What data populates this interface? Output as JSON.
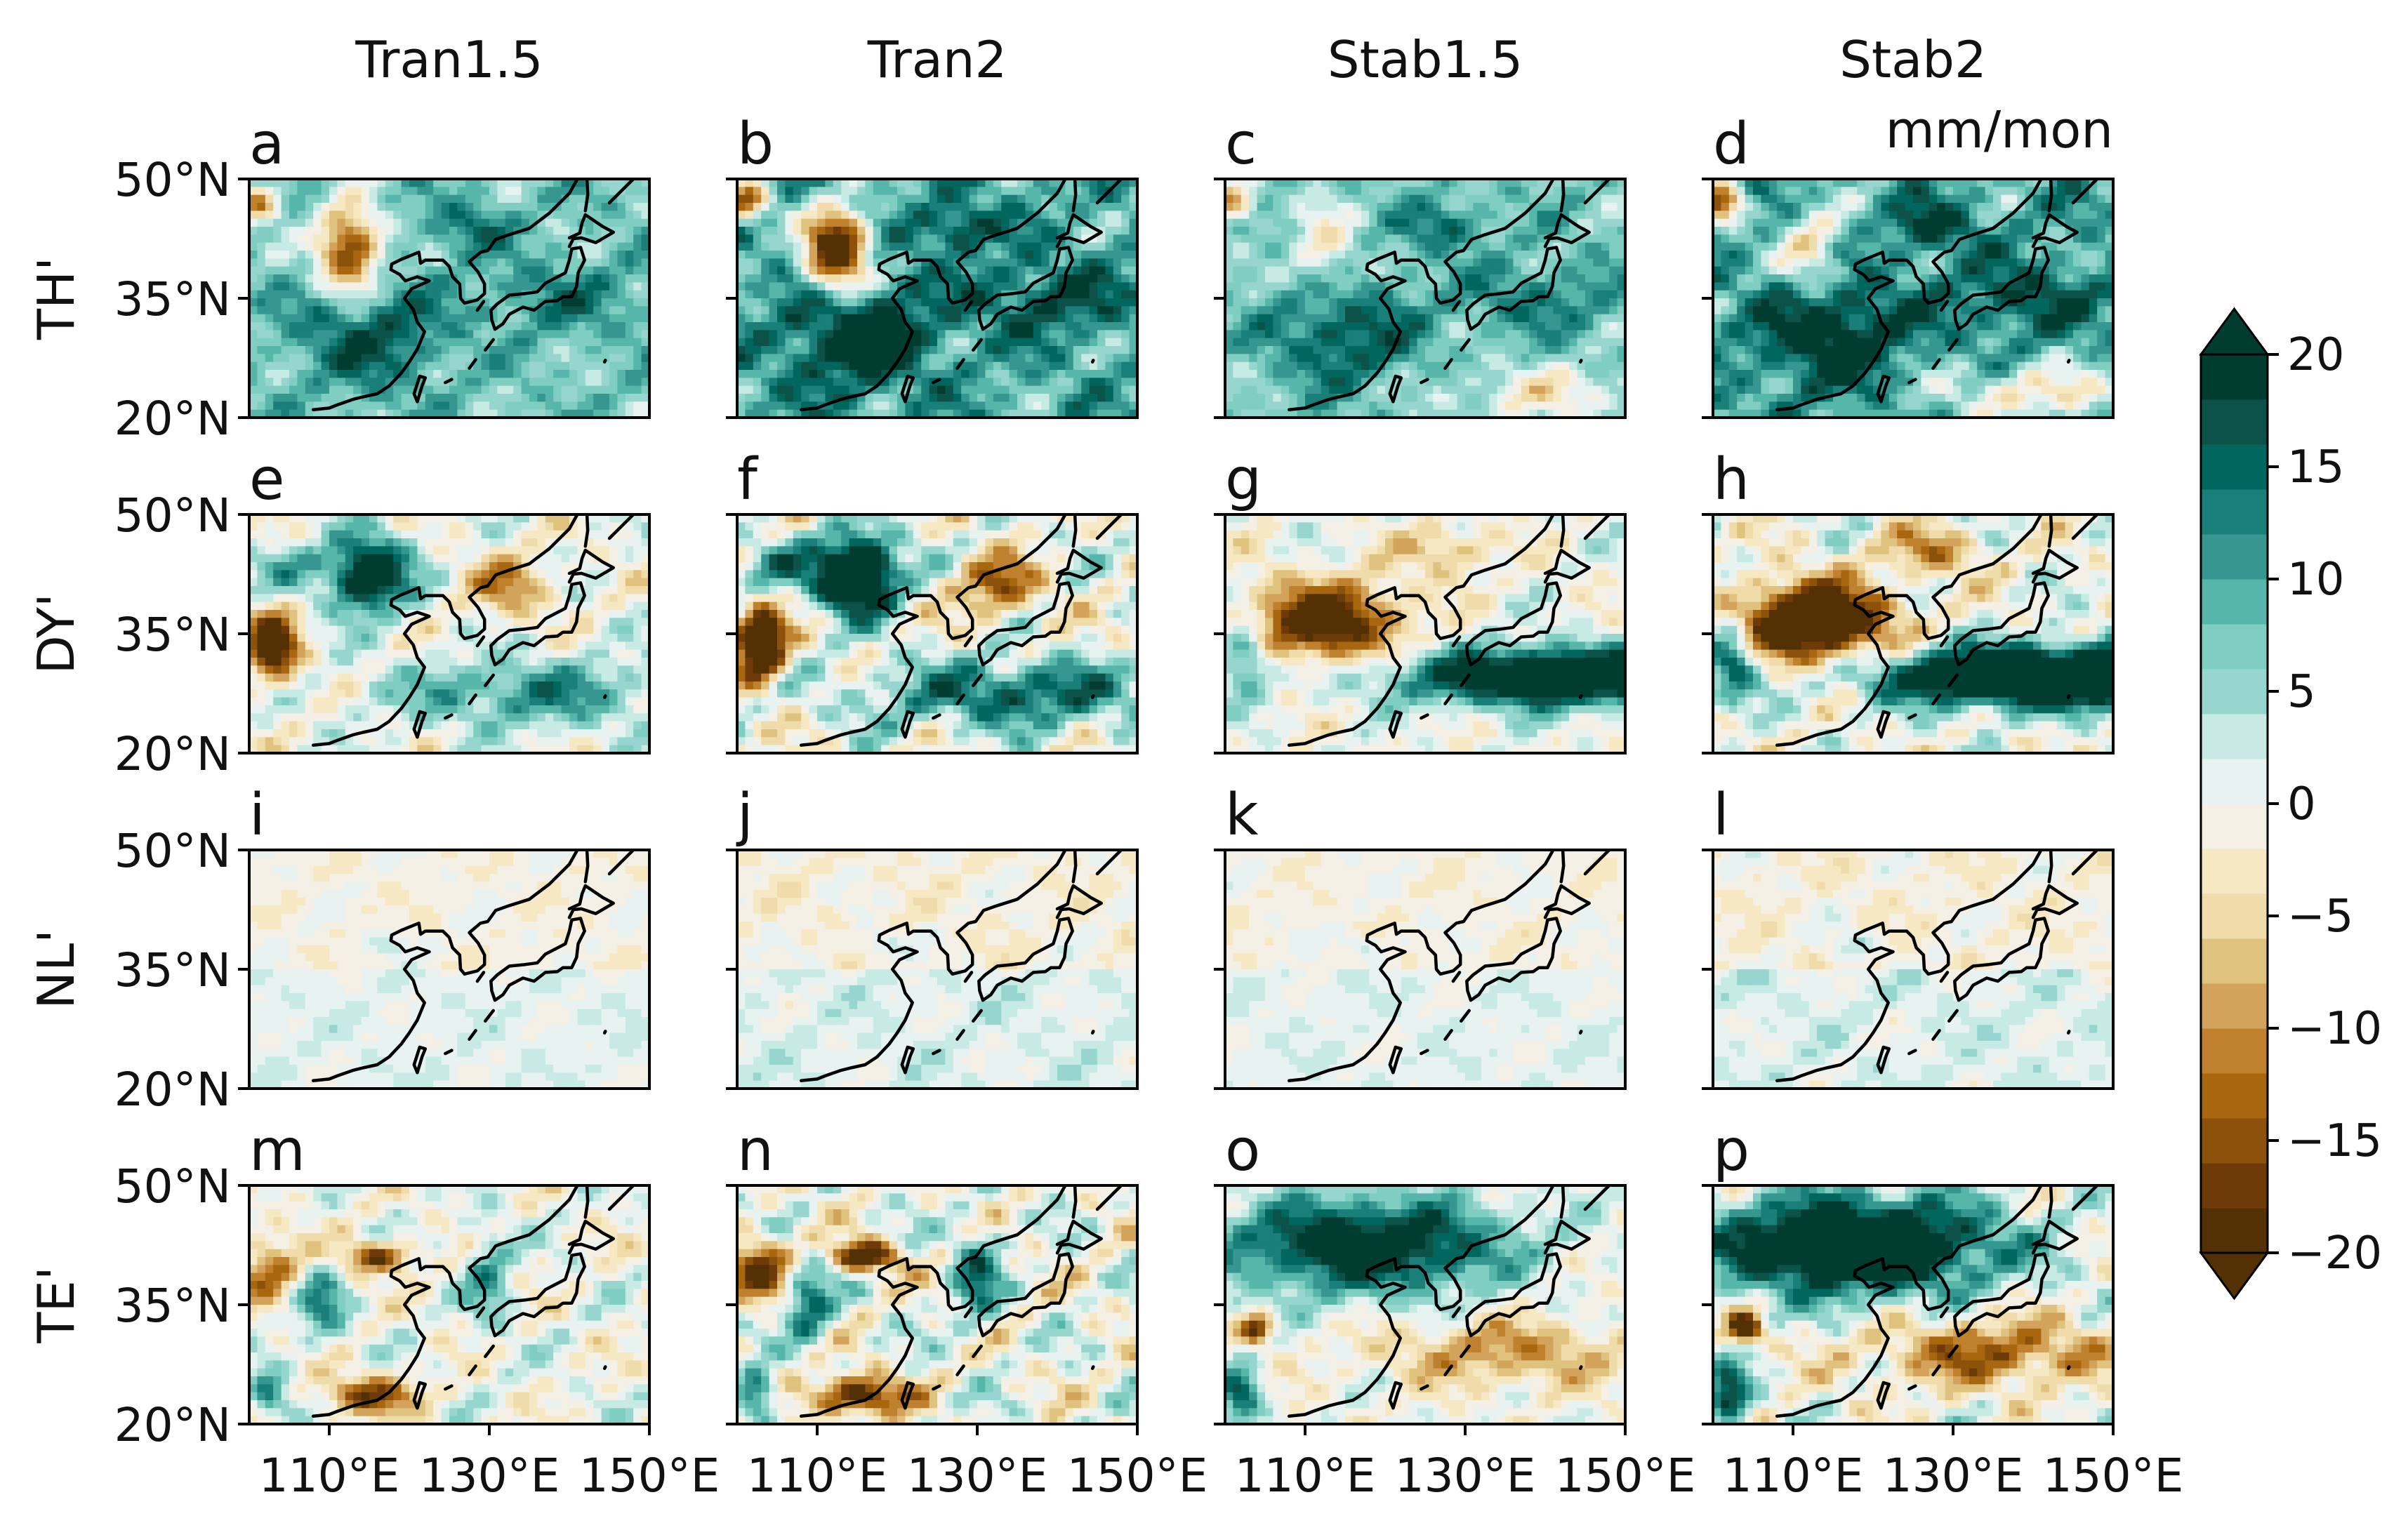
{
  "chart_data": {
    "type": "heatmap",
    "units": "mm/mon",
    "columns": [
      "Tran1.5",
      "Tran2",
      "Stab1.5",
      "Stab2"
    ],
    "rows": [
      "TH'",
      "DY'",
      "NL'",
      "TE'"
    ],
    "panel_labels": [
      "a",
      "b",
      "c",
      "d",
      "e",
      "f",
      "g",
      "h",
      "i",
      "j",
      "k",
      "l",
      "m",
      "n",
      "o",
      "p"
    ],
    "x_range": [
      100,
      150
    ],
    "y_range": [
      20,
      50
    ],
    "x_ticks": [
      110,
      130,
      150
    ],
    "x_tick_labels": [
      "110°E",
      "130°E",
      "150°E"
    ],
    "y_ticks": [
      20,
      35,
      50
    ],
    "y_tick_labels": [
      "20°N",
      "35°N",
      "50°N"
    ],
    "colorbar": {
      "min": -20,
      "max": 20,
      "step": 2.5,
      "extend": "both",
      "ticks": [
        20,
        15,
        10,
        5,
        0,
        -5,
        -10,
        -15,
        -20
      ],
      "tick_labels": [
        "20",
        "15",
        "10",
        "5",
        "0",
        "−5",
        "−10",
        "−15",
        "−20"
      ],
      "colors": [
        "#543005",
        "#6e3b08",
        "#8c510a",
        "#a8660f",
        "#bf812d",
        "#d3a35c",
        "#dfc27d",
        "#efdcaa",
        "#f6e8c3",
        "#f5f0e5",
        "#e8f3f1",
        "#c7eae5",
        "#97d6ce",
        "#80cdc1",
        "#56b6a9",
        "#35978f",
        "#1a7f78",
        "#01665e",
        "#0d5249",
        "#003c30"
      ]
    },
    "pattern_note_removed": true,
    "panels": {
      "TH'": {
        "Tran1.5": "mixed_positive",
        "Tran2": "positive",
        "Stab1.5": "mixed_positive",
        "Stab2": "positive"
      },
      "DY'": {
        "Tran1.5": "mixed",
        "Tran2": "mixed",
        "Stab1.5": "dipole",
        "Stab2": "dipole"
      },
      "NL'": {
        "Tran1.5": "weak",
        "Tran2": "weak",
        "Stab1.5": "weak",
        "Stab2": "weak"
      },
      "TE'": {
        "Tran1.5": "mixed",
        "Tran2": "mixed",
        "Stab1.5": "north_positive",
        "Stab2": "north_positive"
      }
    }
  }
}
